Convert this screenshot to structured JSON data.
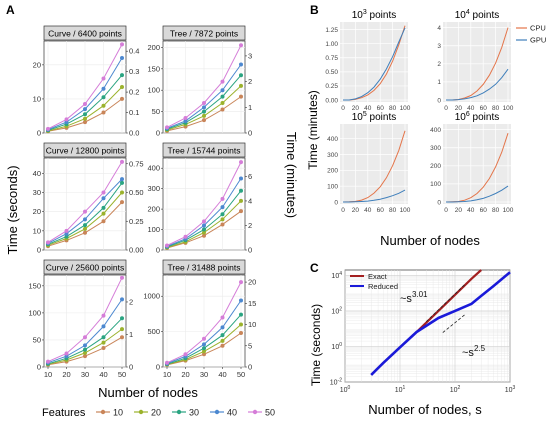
{
  "panel_labels": [
    "A",
    "B",
    "C"
  ],
  "colors": {
    "feature_series": [
      "#c98559",
      "#9bb22c",
      "#2aa481",
      "#4c88d0",
      "#d57dd8"
    ],
    "cpu": "#e4754a",
    "gpu": "#3f7fbb",
    "exact": "#a31f20",
    "reduced": "#1a1ad9"
  },
  "panel_a": {
    "ylabel_left": "Time (seconds)",
    "ylabel_right": "Time (minutes)",
    "xlabel": "Number of nodes",
    "legend_title": "Features",
    "legend_entries": [
      "10",
      "20",
      "30",
      "40",
      "50"
    ],
    "x_ticks": [
      "10",
      "20",
      "30",
      "40",
      "50"
    ]
  },
  "panel_b": {
    "ylabel": "Time (minutes)",
    "xlabel": "Number of nodes",
    "legend_entries": [
      "CPU",
      "GPU"
    ],
    "x_ticks": [
      "0",
      "20",
      "40",
      "60",
      "80",
      "100"
    ]
  },
  "panel_c": {
    "ylabel": "Time (seconds)",
    "xlabel": "Number of nodes, s",
    "legend_entries": [
      "Exact",
      "Reduced"
    ],
    "annotation_exact": "~s",
    "annotation_exact_exp": "3.01",
    "annotation_reduced": "~s",
    "annotation_reduced_exp": "2.5",
    "x_tick_bases": [
      "10",
      "10",
      "10",
      "10"
    ],
    "x_tick_exps": [
      "0",
      "1",
      "2",
      "3"
    ],
    "y_tick_bases": [
      "10",
      "10",
      "10",
      "10"
    ],
    "y_tick_exps": [
      "4",
      "2",
      "0",
      "-2"
    ]
  },
  "chart_data": [
    {
      "type": "line",
      "panel": "A",
      "title": "Curve / 6400 points",
      "x": [
        10,
        20,
        30,
        40,
        50
      ],
      "ylim": [
        0,
        27
      ],
      "y_ticks": [
        0,
        10,
        20
      ],
      "y2_ticks": [
        "0.0",
        "0.1",
        "0.2",
        "0.3",
        "0.4"
      ],
      "y2_max": 0.45,
      "series": [
        {
          "name": "10",
          "values": [
            0.5,
            1.5,
            3.2,
            6,
            10
          ]
        },
        {
          "name": "20",
          "values": [
            0.6,
            2,
            4.2,
            8,
            13.5
          ]
        },
        {
          "name": "30",
          "values": [
            0.8,
            2.6,
            5.5,
            10.5,
            17
          ]
        },
        {
          "name": "40",
          "values": [
            1,
            3.2,
            7,
            13,
            22
          ]
        },
        {
          "name": "50",
          "values": [
            1.2,
            4,
            8.5,
            16,
            26
          ]
        }
      ]
    },
    {
      "type": "line",
      "panel": "A",
      "title": "Tree / 7872 points",
      "x": [
        10,
        20,
        30,
        40,
        50
      ],
      "ylim": [
        0,
        215
      ],
      "y_ticks": [
        0,
        50,
        100,
        150,
        200
      ],
      "y2_ticks": [
        "0",
        "1",
        "2",
        "3"
      ],
      "y2_max": 3.58,
      "series": [
        {
          "name": "10",
          "values": [
            5,
            15,
            30,
            55,
            85
          ]
        },
        {
          "name": "20",
          "values": [
            7,
            20,
            40,
            70,
            110
          ]
        },
        {
          "name": "30",
          "values": [
            9,
            24,
            50,
            85,
            135
          ]
        },
        {
          "name": "40",
          "values": [
            11,
            28,
            60,
            100,
            160
          ]
        },
        {
          "name": "50",
          "values": [
            13,
            35,
            70,
            120,
            205
          ]
        }
      ]
    },
    {
      "type": "line",
      "panel": "A",
      "title": "Curve / 12800 points",
      "x": [
        10,
        20,
        30,
        40,
        50
      ],
      "ylim": [
        0,
        48
      ],
      "y_ticks": [
        0,
        10,
        20,
        30,
        40
      ],
      "y2_ticks": [
        "0.00",
        "0.25",
        "0.50",
        "0.75"
      ],
      "y2_max": 0.8,
      "series": [
        {
          "name": "10",
          "values": [
            2,
            5,
            9,
            15,
            25
          ]
        },
        {
          "name": "20",
          "values": [
            2.5,
            6,
            11,
            19,
            30
          ]
        },
        {
          "name": "30",
          "values": [
            3,
            7,
            13,
            22,
            35
          ]
        },
        {
          "name": "40",
          "values": [
            3.5,
            8.5,
            16,
            27,
            37
          ]
        },
        {
          "name": "50",
          "values": [
            4,
            10,
            20,
            30,
            46
          ]
        }
      ]
    },
    {
      "type": "line",
      "panel": "A",
      "title": "Tree / 15744 points",
      "x": [
        10,
        20,
        30,
        40,
        50
      ],
      "ylim": [
        0,
        450
      ],
      "y_ticks": [
        0,
        100,
        200,
        300,
        400
      ],
      "y2_ticks": [
        "0",
        "2",
        "4",
        "6"
      ],
      "y2_max": 7.5,
      "series": [
        {
          "name": "10",
          "values": [
            10,
            35,
            70,
            125,
            190
          ]
        },
        {
          "name": "20",
          "values": [
            12,
            40,
            85,
            150,
            240
          ]
        },
        {
          "name": "30",
          "values": [
            15,
            48,
            100,
            175,
            290
          ]
        },
        {
          "name": "40",
          "values": [
            18,
            55,
            120,
            210,
            350
          ]
        },
        {
          "name": "50",
          "values": [
            22,
            65,
            140,
            250,
            430
          ]
        }
      ]
    },
    {
      "type": "line",
      "panel": "A",
      "title": "Curve / 25600 points",
      "x": [
        10,
        20,
        30,
        40,
        50
      ],
      "ylim": [
        0,
        170
      ],
      "y_ticks": [
        0,
        50,
        100,
        150
      ],
      "y2_ticks": [
        "0",
        "1",
        "2"
      ],
      "y2_max": 2.83,
      "series": [
        {
          "name": "10",
          "values": [
            4,
            10,
            20,
            35,
            55
          ]
        },
        {
          "name": "20",
          "values": [
            5,
            13,
            26,
            45,
            70
          ]
        },
        {
          "name": "30",
          "values": [
            6,
            16,
            32,
            55,
            90
          ]
        },
        {
          "name": "40",
          "values": [
            8,
            20,
            40,
            75,
            125
          ]
        },
        {
          "name": "50",
          "values": [
            10,
            25,
            55,
            95,
            165
          ]
        }
      ]
    },
    {
      "type": "line",
      "panel": "A",
      "title": "Tree / 31488 points",
      "x": [
        10,
        20,
        30,
        40,
        50
      ],
      "ylim": [
        0,
        1300
      ],
      "y_ticks": [
        0,
        500,
        1000
      ],
      "y2_ticks": [
        "0",
        "5",
        "10",
        "15",
        "20"
      ],
      "y2_max": 21.67,
      "series": [
        {
          "name": "10",
          "values": [
            30,
            90,
            180,
            300,
            480
          ]
        },
        {
          "name": "20",
          "values": [
            35,
            105,
            220,
            370,
            600
          ]
        },
        {
          "name": "30",
          "values": [
            40,
            125,
            265,
            450,
            740
          ]
        },
        {
          "name": "40",
          "values": [
            50,
            150,
            320,
            560,
            940
          ]
        },
        {
          "name": "50",
          "values": [
            60,
            180,
            400,
            700,
            1200
          ]
        }
      ]
    },
    {
      "type": "line",
      "panel": "B",
      "title": "10",
      "title_exp": "3",
      "title_suffix": " points",
      "xlim": [
        0,
        100
      ],
      "ylim": [
        0,
        1.35
      ],
      "y_ticks": [
        "0.00",
        "0.25",
        "0.50",
        "0.75",
        "1.00",
        "1.25"
      ],
      "y_tick_values": [
        0,
        0.25,
        0.5,
        0.75,
        1.0,
        1.25
      ],
      "x": [
        0,
        10,
        20,
        30,
        40,
        50,
        60,
        70,
        80,
        90,
        100
      ],
      "series": [
        {
          "name": "CPU",
          "values": [
            0.0,
            0.0,
            0.01,
            0.04,
            0.09,
            0.17,
            0.29,
            0.46,
            0.69,
            0.98,
            1.32
          ]
        },
        {
          "name": "GPU",
          "values": [
            0.0,
            0.0,
            0.02,
            0.06,
            0.13,
            0.23,
            0.37,
            0.55,
            0.77,
            1.03,
            1.28
          ]
        }
      ]
    },
    {
      "type": "line",
      "panel": "B",
      "title": "10",
      "title_exp": "4",
      "title_suffix": " points",
      "xlim": [
        0,
        100
      ],
      "ylim": [
        0,
        4.2
      ],
      "y_ticks": [
        "0",
        "1",
        "2",
        "3",
        "4"
      ],
      "y_tick_values": [
        0,
        1,
        2,
        3,
        4
      ],
      "x": [
        0,
        10,
        20,
        30,
        40,
        50,
        60,
        70,
        80,
        90,
        100
      ],
      "series": [
        {
          "name": "CPU",
          "values": [
            0.0,
            0.0,
            0.03,
            0.11,
            0.25,
            0.5,
            0.86,
            1.37,
            2.04,
            2.91,
            4.0
          ]
        },
        {
          "name": "GPU",
          "values": [
            0.0,
            0.0,
            0.02,
            0.06,
            0.13,
            0.23,
            0.39,
            0.6,
            0.87,
            1.24,
            1.7
          ]
        }
      ]
    },
    {
      "type": "line",
      "panel": "B",
      "title": "10",
      "title_exp": "5",
      "title_suffix": " points",
      "xlim": [
        0,
        100
      ],
      "ylim": [
        0,
        480
      ],
      "y_ticks": [
        "0",
        "100",
        "200",
        "300",
        "400"
      ],
      "y_tick_values": [
        0,
        100,
        200,
        300,
        400
      ],
      "x": [
        0,
        10,
        20,
        30,
        40,
        50,
        60,
        70,
        80,
        90,
        100
      ],
      "series": [
        {
          "name": "CPU",
          "values": [
            0,
            1,
            4,
            12,
            28,
            56,
            96,
            153,
            229,
            326,
            450
          ]
        },
        {
          "name": "GPU",
          "values": [
            0,
            0,
            1,
            3,
            6,
            11,
            18,
            28,
            40,
            55,
            75
          ]
        }
      ]
    },
    {
      "type": "line",
      "panel": "B",
      "title": "10",
      "title_exp": "6",
      "title_suffix": " points",
      "xlim": [
        0,
        100
      ],
      "ylim": [
        0,
        420
      ],
      "y_ticks": [
        "0",
        "100",
        "200",
        "300",
        "400"
      ],
      "y_tick_values": [
        0,
        100,
        200,
        300,
        400
      ],
      "x": [
        0,
        10,
        20,
        30,
        40,
        50,
        60,
        70,
        80,
        90,
        100
      ],
      "series": [
        {
          "name": "CPU",
          "values": [
            0,
            1,
            3,
            10,
            24,
            47,
            82,
            130,
            194,
            276,
            380
          ]
        },
        {
          "name": "GPU",
          "values": [
            0,
            0,
            1,
            3,
            6,
            12,
            20,
            32,
            47,
            65,
            88
          ]
        }
      ]
    },
    {
      "type": "line",
      "panel": "C",
      "log_x": true,
      "log_y": true,
      "xlim": [
        1,
        1000
      ],
      "ylim": [
        0.01,
        20000
      ],
      "series": [
        {
          "name": "Exact",
          "x": [
            3,
            5,
            10,
            20,
            50,
            100,
            200,
            300
          ],
          "values": [
            0.025,
            0.12,
            0.9,
            6.5,
            100,
            800,
            6500,
            20000
          ]
        },
        {
          "name": "Reduced",
          "x": [
            3,
            5,
            10,
            20,
            50,
            100,
            200,
            300,
            500,
            1000
          ],
          "values": [
            0.025,
            0.12,
            0.9,
            6.5,
            40,
            100,
            250,
            700,
            2500,
            15000
          ]
        }
      ]
    }
  ]
}
